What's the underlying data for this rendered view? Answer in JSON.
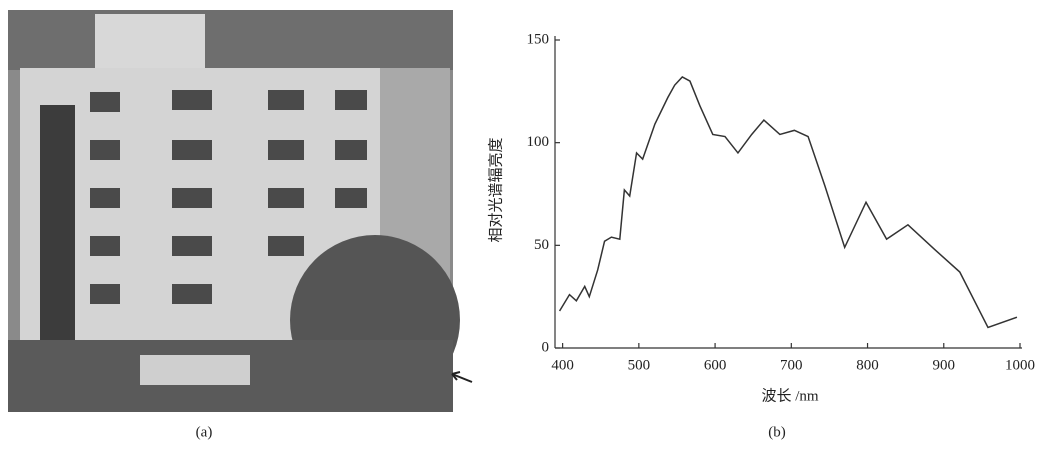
{
  "chart_data": {
    "type": "line",
    "xlabel": "波长 /nm",
    "ylabel": "相对光谱辐亮度",
    "x": [
      396,
      409,
      418,
      429,
      435,
      446,
      455,
      464,
      475,
      481,
      488,
      497,
      505,
      521,
      538,
      547,
      557,
      567,
      580,
      597,
      613,
      630,
      648,
      664,
      685,
      704,
      722,
      744,
      770,
      798,
      825,
      853,
      888,
      921,
      958,
      996
    ],
    "series": [
      {
        "color": "#333333",
        "values": [
          18,
          26,
          23,
          30,
          25,
          38,
          52,
          54,
          53,
          77,
          74,
          95,
          92,
          109,
          122,
          128,
          132,
          130,
          118,
          104,
          103,
          95,
          104,
          111,
          104,
          106,
          103,
          79,
          49,
          71,
          53,
          60,
          48,
          37,
          10,
          15
        ]
      }
    ],
    "xlim": [
      390,
      1000
    ],
    "xticks": [
      400,
      500,
      600,
      700,
      800,
      900,
      1000
    ],
    "ylim": [
      0,
      150
    ],
    "yticks": [
      0,
      50,
      100,
      150
    ],
    "grid": false
  },
  "captions": [
    "(a)",
    "(b)"
  ]
}
